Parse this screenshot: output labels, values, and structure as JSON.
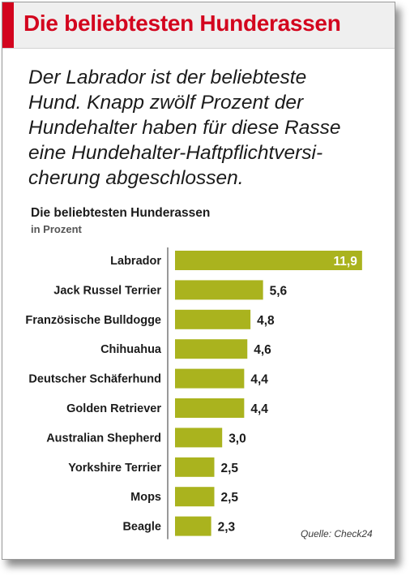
{
  "header": {
    "title": "Die beliebtesten Hunderassen"
  },
  "lead_lines": [
    "Der Labrador ist der beliebteste",
    "Hund. Knapp zwölf Prozent der",
    "Hundehalter haben für diese Rasse",
    "eine Hundehalter-Haftpflichtversi-",
    "cherung abgeschlossen."
  ],
  "chart_data": {
    "type": "bar",
    "orientation": "horizontal",
    "title": "Die beliebtesten Hunderassen",
    "subtitle": "in Prozent",
    "categories": [
      "Labrador",
      "Jack Russel Terrier",
      "Französische Bulldogge",
      "Chihuahua",
      "Deutscher Schäferhund",
      "Golden Retriever",
      "Australian Shepherd",
      "Yorkshire Terrier",
      "Mops",
      "Beagle"
    ],
    "values": [
      11.9,
      5.6,
      4.8,
      4.6,
      4.4,
      4.4,
      3.0,
      2.5,
      2.5,
      2.3
    ],
    "value_labels": [
      "11,9",
      "5,6",
      "4,8",
      "4,6",
      "4,4",
      "4,4",
      "3,0",
      "2,5",
      "2,5",
      "2,3"
    ],
    "xlim": [
      0,
      12
    ],
    "grid": false,
    "legend": "none"
  },
  "source": "Quelle: Check24",
  "colors": {
    "bar": "#aab31e",
    "title": "#d3051e",
    "text": "#1b1b1b",
    "axis": "#333333"
  }
}
